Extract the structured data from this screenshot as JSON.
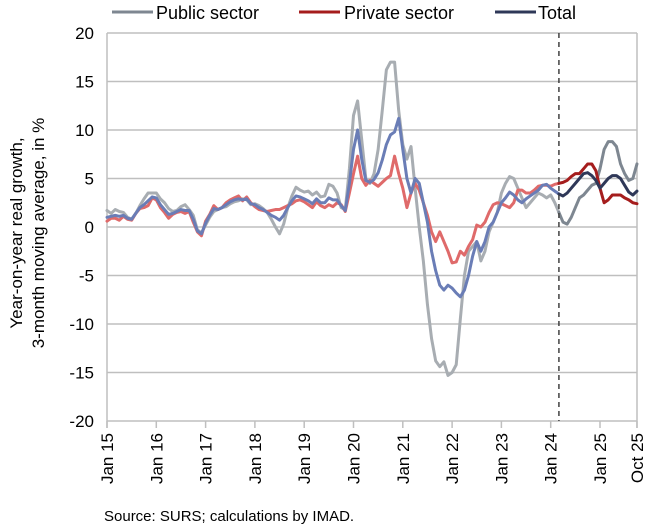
{
  "chart_data": {
    "type": "line",
    "title": "",
    "ylabel": "Year-on-year real growth, 3-month moving average, in %",
    "ylabel_lines": [
      "Year-on-year real growth,",
      "3-month moving average, in %"
    ],
    "xlabel": "",
    "ylim": [
      -20,
      20
    ],
    "yticks": [
      20,
      15,
      10,
      5,
      0,
      -5,
      -10,
      -15,
      -20
    ],
    "x_start": "2015-01",
    "x_end": "2025-10",
    "xticks": [
      {
        "label": "Jan 15",
        "month_index": 0
      },
      {
        "label": "Jan 16",
        "month_index": 12
      },
      {
        "label": "Jan 17",
        "month_index": 24
      },
      {
        "label": "Jan 18",
        "month_index": 36
      },
      {
        "label": "Jan 19",
        "month_index": 48
      },
      {
        "label": "Jan 20",
        "month_index": 60
      },
      {
        "label": "Jan 21",
        "month_index": 72
      },
      {
        "label": "Jan 22",
        "month_index": 84
      },
      {
        "label": "Jan 23",
        "month_index": 96
      },
      {
        "label": "Jan 24",
        "month_index": 108
      },
      {
        "label": "Jan 25",
        "month_index": 120
      },
      {
        "label": "Oct 25",
        "month_index": 129
      }
    ],
    "grid": true,
    "legend_position": "top",
    "vertical_marker": {
      "month_index": 110,
      "style": "dashed",
      "label": "Mar 24"
    },
    "series": [
      {
        "name": "Public sector",
        "color_before": "#a8adb2",
        "color_after": "#7e8791",
        "values": [
          1.7,
          1.4,
          1.8,
          1.6,
          1.5,
          1.0,
          0.8,
          1.4,
          2.2,
          2.9,
          3.5,
          3.5,
          3.5,
          2.9,
          2.5,
          1.9,
          1.6,
          1.7,
          2.1,
          2.3,
          1.8,
          1.2,
          -0.3,
          -0.6,
          0.2,
          1.0,
          1.6,
          1.8,
          2.0,
          2.1,
          2.4,
          2.6,
          2.7,
          2.9,
          2.8,
          2.3,
          2.4,
          2.2,
          1.9,
          1.5,
          0.8,
          0.0,
          -0.7,
          0.3,
          2.0,
          3.2,
          4.1,
          3.8,
          3.6,
          3.7,
          3.3,
          3.6,
          3.1,
          3.2,
          4.4,
          4.2,
          3.5,
          2.0,
          1.8,
          6.0,
          11.5,
          13.0,
          9.0,
          5.0,
          4.5,
          5.5,
          8.0,
          12.0,
          16.2,
          17.0,
          17.0,
          12.0,
          8.5,
          7.0,
          8.3,
          4.0,
          0.0,
          -3.5,
          -8.0,
          -11.5,
          -13.8,
          -14.4,
          -13.9,
          -15.3,
          -15.0,
          -14.2,
          -9.5,
          -5.0,
          -2.5,
          -2.0,
          -1.5,
          -3.5,
          -2.5,
          -0.5,
          0.5,
          1.5,
          3.5,
          4.5,
          5.2,
          5.0,
          4.0,
          3.0,
          2.0,
          2.5,
          3.0,
          3.5,
          3.3,
          3.0,
          3.3,
          2.5,
          1.5,
          0.5,
          0.3,
          1.0,
          2.0,
          3.0,
          3.3,
          3.8,
          4.3,
          4.5,
          6.0,
          8.0,
          8.8,
          8.8,
          8.3,
          6.5,
          5.5,
          4.8,
          5.0,
          6.5
        ]
      },
      {
        "name": "Private sector",
        "color_before": "#df6a6a",
        "color_after": "#a51d1d",
        "values": [
          0.6,
          0.9,
          0.9,
          0.7,
          1.1,
          0.8,
          0.7,
          1.4,
          1.9,
          2.0,
          2.2,
          3.0,
          2.8,
          2.0,
          1.5,
          0.9,
          1.3,
          1.5,
          1.6,
          1.4,
          1.6,
          0.5,
          -0.5,
          -0.9,
          0.6,
          1.3,
          2.2,
          1.8,
          2.0,
          2.5,
          2.8,
          3.0,
          3.2,
          2.7,
          3.1,
          2.5,
          2.1,
          1.8,
          1.7,
          1.6,
          1.7,
          1.8,
          1.8,
          2.0,
          2.2,
          2.4,
          2.7,
          2.8,
          2.6,
          2.3,
          2.0,
          2.6,
          2.2,
          2.0,
          2.3,
          2.1,
          2.5,
          2.3,
          1.6,
          3.5,
          5.5,
          7.3,
          5.0,
          4.3,
          4.8,
          4.5,
          4.2,
          4.6,
          5.0,
          5.3,
          7.3,
          5.5,
          4.0,
          2.0,
          3.5,
          4.5,
          3.8,
          2.5,
          1.2,
          -0.5,
          -1.5,
          -0.5,
          -1.5,
          -2.5,
          -3.7,
          -3.6,
          -2.5,
          -2.9,
          -2.0,
          -1.3,
          0.2,
          0.0,
          0.5,
          1.5,
          2.3,
          2.5,
          2.4,
          2.2,
          2.0,
          2.5,
          3.8,
          3.8,
          3.5,
          3.5,
          3.8,
          4.2,
          4.3,
          4.3,
          4.2,
          4.4,
          4.5,
          4.6,
          4.8,
          5.2,
          5.5,
          5.5,
          6.0,
          6.5,
          6.5,
          5.8,
          4.0,
          2.5,
          2.8,
          3.3,
          3.3,
          3.3,
          3.0,
          2.8,
          2.5,
          2.4
        ]
      },
      {
        "name": "Total",
        "color_before": "#6a7db6",
        "color_after": "#2f3858",
        "values": [
          1.0,
          1.1,
          1.2,
          1.1,
          1.2,
          0.9,
          0.8,
          1.4,
          2.0,
          2.3,
          2.7,
          3.1,
          3.0,
          2.3,
          1.8,
          1.3,
          1.4,
          1.6,
          1.8,
          1.7,
          1.7,
          0.8,
          -0.4,
          -0.7,
          0.4,
          1.2,
          1.9,
          1.8,
          2.0,
          2.3,
          2.6,
          2.8,
          2.9,
          2.8,
          2.9,
          2.4,
          2.3,
          2.0,
          1.8,
          1.5,
          1.2,
          1.0,
          0.7,
          1.2,
          2.0,
          2.7,
          3.2,
          3.1,
          2.9,
          2.7,
          2.4,
          2.9,
          2.5,
          2.5,
          3.0,
          2.8,
          2.8,
          2.2,
          1.7,
          4.5,
          8.0,
          10.0,
          7.0,
          4.8,
          4.6,
          4.9,
          5.6,
          6.9,
          8.5,
          9.5,
          9.8,
          11.2,
          8.0,
          5.0,
          3.5,
          5.0,
          4.5,
          2.5,
          0.5,
          -2.5,
          -4.5,
          -6.0,
          -6.5,
          -6.0,
          -6.3,
          -6.8,
          -7.2,
          -6.5,
          -5.0,
          -3.0,
          -1.5,
          -2.5,
          -1.5,
          0.0,
          0.5,
          1.5,
          2.5,
          3.0,
          3.6,
          3.3,
          2.8,
          2.5,
          2.9,
          3.2,
          3.5,
          3.8,
          4.3,
          4.4,
          4.0,
          3.7,
          3.4,
          3.2,
          3.5,
          4.0,
          4.5,
          5.0,
          5.5,
          5.6,
          5.3,
          4.8,
          4.0,
          4.5,
          5.0,
          5.3,
          5.3,
          5.0,
          4.3,
          3.6,
          3.3,
          3.7
        ]
      }
    ],
    "source": "Source: SURS; calculations by IMAD."
  }
}
